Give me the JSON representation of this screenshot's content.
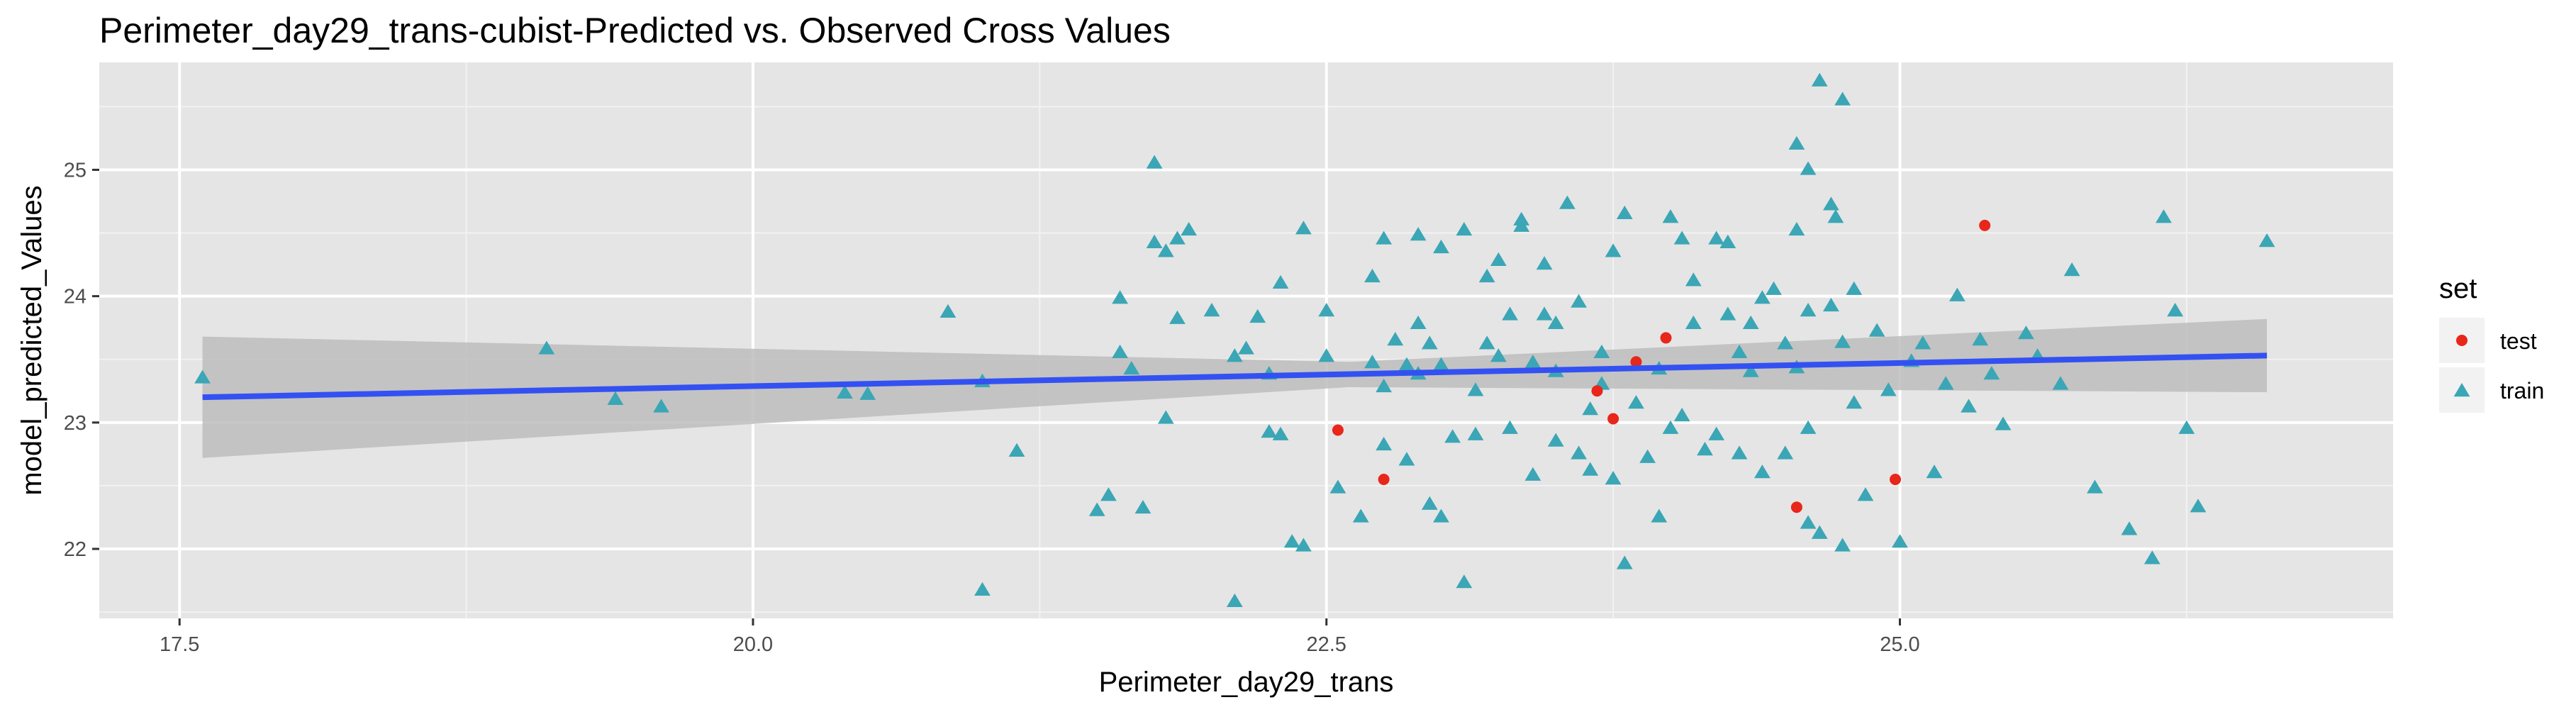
{
  "chart_data": {
    "type": "scatter",
    "title": "Perimeter_day29_trans-cubist-Predicted vs. Observed Cross Values",
    "xlabel": "Perimeter_day29_trans",
    "ylabel": "model_predicted_Values",
    "xlim": [
      17.15,
      27.15
    ],
    "ylim": [
      21.45,
      25.85
    ],
    "x_ticks": [
      17.5,
      20.0,
      22.5,
      25.0
    ],
    "x_tick_labels": [
      "17.5",
      "20.0",
      "22.5",
      "25.0"
    ],
    "y_ticks": [
      22,
      23,
      24,
      25
    ],
    "y_tick_labels": [
      "22",
      "23",
      "24",
      "25"
    ],
    "grid": true,
    "panel_background": "#e5e5e5",
    "legend": {
      "title": "set",
      "position": "right"
    },
    "series": [
      {
        "name": "test",
        "shape": "circle",
        "color": "#e8261a",
        "points": [
          [
            22.55,
            22.94
          ],
          [
            22.75,
            22.55
          ],
          [
            23.68,
            23.25
          ],
          [
            23.75,
            23.03
          ],
          [
            23.85,
            23.48
          ],
          [
            23.98,
            23.67
          ],
          [
            24.55,
            22.33
          ],
          [
            24.98,
            22.55
          ],
          [
            25.37,
            24.56
          ]
        ]
      },
      {
        "name": "train",
        "shape": "triangle",
        "color": "#3ba6b5",
        "points": [
          [
            17.6,
            23.35
          ],
          [
            19.1,
            23.58
          ],
          [
            19.4,
            23.18
          ],
          [
            19.6,
            23.12
          ],
          [
            20.4,
            23.23
          ],
          [
            20.5,
            23.22
          ],
          [
            20.85,
            23.87
          ],
          [
            21.0,
            23.32
          ],
          [
            21.0,
            21.67
          ],
          [
            21.15,
            22.77
          ],
          [
            21.5,
            22.3
          ],
          [
            21.55,
            22.42
          ],
          [
            21.6,
            23.55
          ],
          [
            21.6,
            23.98
          ],
          [
            21.65,
            23.42
          ],
          [
            21.7,
            22.32
          ],
          [
            21.75,
            24.42
          ],
          [
            21.75,
            25.05
          ],
          [
            21.8,
            24.35
          ],
          [
            21.8,
            23.03
          ],
          [
            21.85,
            23.82
          ],
          [
            21.85,
            24.45
          ],
          [
            21.9,
            24.52
          ],
          [
            22.0,
            23.88
          ],
          [
            22.1,
            23.52
          ],
          [
            22.1,
            21.58
          ],
          [
            22.15,
            23.58
          ],
          [
            22.2,
            23.83
          ],
          [
            22.25,
            23.38
          ],
          [
            22.25,
            22.92
          ],
          [
            22.3,
            24.1
          ],
          [
            22.3,
            22.9
          ],
          [
            22.35,
            22.05
          ],
          [
            22.4,
            24.53
          ],
          [
            22.4,
            22.02
          ],
          [
            22.5,
            23.88
          ],
          [
            22.5,
            23.52
          ],
          [
            22.55,
            22.48
          ],
          [
            22.65,
            22.25
          ],
          [
            22.7,
            24.15
          ],
          [
            22.7,
            23.47
          ],
          [
            22.75,
            22.82
          ],
          [
            22.75,
            23.28
          ],
          [
            22.8,
            23.65
          ],
          [
            22.85,
            22.7
          ],
          [
            22.9,
            23.38
          ],
          [
            22.9,
            24.48
          ],
          [
            22.9,
            23.78
          ],
          [
            22.95,
            23.62
          ],
          [
            22.95,
            22.35
          ],
          [
            23.0,
            23.45
          ],
          [
            23.0,
            22.25
          ],
          [
            23.0,
            24.38
          ],
          [
            23.05,
            22.88
          ],
          [
            23.1,
            24.52
          ],
          [
            23.1,
            21.73
          ],
          [
            23.15,
            22.9
          ],
          [
            23.15,
            23.25
          ],
          [
            23.2,
            23.62
          ],
          [
            23.25,
            23.52
          ],
          [
            23.25,
            24.28
          ],
          [
            23.3,
            22.95
          ],
          [
            23.3,
            23.85
          ],
          [
            23.35,
            24.6
          ],
          [
            23.4,
            23.47
          ],
          [
            23.4,
            22.58
          ],
          [
            23.45,
            24.25
          ],
          [
            23.5,
            23.4
          ],
          [
            23.5,
            23.78
          ],
          [
            23.5,
            22.85
          ],
          [
            23.55,
            24.73
          ],
          [
            23.6,
            22.75
          ],
          [
            23.6,
            23.95
          ],
          [
            23.65,
            23.1
          ],
          [
            23.65,
            22.62
          ],
          [
            23.7,
            23.55
          ],
          [
            23.7,
            23.3
          ],
          [
            23.75,
            24.35
          ],
          [
            23.75,
            22.55
          ],
          [
            23.8,
            24.65
          ],
          [
            23.8,
            21.88
          ],
          [
            23.85,
            23.15
          ],
          [
            23.9,
            22.72
          ],
          [
            23.95,
            22.25
          ],
          [
            23.95,
            23.42
          ],
          [
            24.0,
            24.62
          ],
          [
            24.0,
            22.95
          ],
          [
            24.05,
            23.05
          ],
          [
            24.05,
            24.45
          ],
          [
            24.1,
            23.78
          ],
          [
            24.15,
            22.78
          ],
          [
            24.2,
            22.9
          ],
          [
            24.2,
            24.45
          ],
          [
            24.25,
            24.42
          ],
          [
            24.25,
            23.85
          ],
          [
            24.3,
            23.55
          ],
          [
            24.3,
            22.75
          ],
          [
            24.35,
            23.4
          ],
          [
            24.35,
            23.78
          ],
          [
            24.4,
            22.6
          ],
          [
            24.4,
            23.98
          ],
          [
            24.45,
            24.05
          ],
          [
            24.5,
            23.62
          ],
          [
            24.5,
            22.75
          ],
          [
            24.55,
            23.43
          ],
          [
            24.55,
            24.52
          ],
          [
            24.6,
            22.95
          ],
          [
            24.6,
            23.88
          ],
          [
            24.65,
            22.12
          ],
          [
            24.7,
            24.72
          ],
          [
            24.7,
            23.92
          ],
          [
            24.75,
            22.02
          ],
          [
            24.75,
            23.63
          ],
          [
            24.8,
            24.05
          ],
          [
            24.8,
            23.15
          ],
          [
            24.85,
            22.42
          ],
          [
            24.9,
            23.72
          ],
          [
            24.95,
            23.25
          ],
          [
            25.0,
            22.05
          ],
          [
            25.05,
            23.48
          ],
          [
            25.1,
            23.62
          ],
          [
            25.15,
            22.6
          ],
          [
            25.2,
            23.3
          ],
          [
            25.25,
            24.0
          ],
          [
            25.3,
            23.12
          ],
          [
            25.35,
            23.65
          ],
          [
            25.4,
            23.38
          ],
          [
            25.45,
            22.98
          ],
          [
            25.55,
            23.7
          ],
          [
            25.6,
            23.52
          ],
          [
            25.7,
            23.3
          ],
          [
            25.75,
            24.2
          ],
          [
            25.85,
            22.48
          ],
          [
            26.0,
            22.15
          ],
          [
            26.1,
            21.92
          ],
          [
            26.15,
            24.62
          ],
          [
            26.2,
            23.88
          ],
          [
            26.25,
            22.95
          ],
          [
            26.3,
            22.33
          ],
          [
            26.6,
            24.43
          ],
          [
            22.75,
            24.45
          ],
          [
            23.35,
            24.55
          ],
          [
            23.2,
            24.15
          ],
          [
            22.85,
            23.45
          ],
          [
            23.45,
            23.85
          ],
          [
            24.1,
            24.12
          ],
          [
            24.55,
            25.2
          ],
          [
            24.6,
            25.0
          ],
          [
            24.65,
            25.7
          ],
          [
            24.75,
            25.55
          ],
          [
            24.72,
            24.62
          ],
          [
            24.6,
            22.2
          ]
        ]
      }
    ],
    "fit_line": {
      "color": "#3351f2",
      "points": [
        [
          17.6,
          23.2
        ],
        [
          26.6,
          23.53
        ]
      ],
      "band_color": "#bdbdbd",
      "band_upper": [
        [
          17.6,
          23.68
        ],
        [
          22.6,
          23.48
        ],
        [
          26.6,
          23.82
        ]
      ],
      "band_lower": [
        [
          17.6,
          22.72
        ],
        [
          22.6,
          23.28
        ],
        [
          26.6,
          23.24
        ]
      ]
    }
  }
}
